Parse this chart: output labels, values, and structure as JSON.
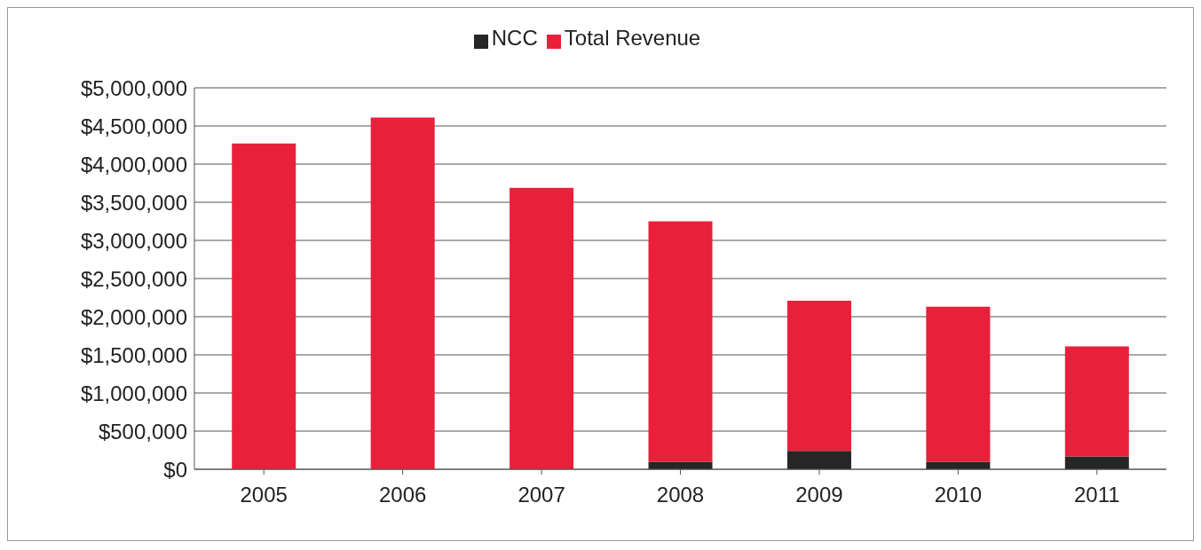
{
  "chart_data": {
    "type": "bar",
    "stacked": true,
    "categories": [
      "2005",
      "2006",
      "2007",
      "2008",
      "2009",
      "2010",
      "2011"
    ],
    "series": [
      {
        "name": "NCC",
        "color": "#262626",
        "values": [
          0,
          0,
          0,
          100000,
          240000,
          100000,
          170000
        ]
      },
      {
        "name": "Total Revenue",
        "color": "#e8203a",
        "values": [
          4270000,
          4610000,
          3690000,
          3150000,
          1970000,
          2030000,
          1440000
        ]
      }
    ],
    "ylim": [
      0,
      5000000
    ],
    "yticks": [
      {
        "value": 0,
        "label": "$0"
      },
      {
        "value": 500000,
        "label": "$500,000"
      },
      {
        "value": 1000000,
        "label": "$1,000,000"
      },
      {
        "value": 1500000,
        "label": "$1,500,000"
      },
      {
        "value": 2000000,
        "label": "$2,000,000"
      },
      {
        "value": 2500000,
        "label": "$2,500,000"
      },
      {
        "value": 3000000,
        "label": "$3,000,000"
      },
      {
        "value": 3500000,
        "label": "$3,500,000"
      },
      {
        "value": 4000000,
        "label": "$4,000,000"
      },
      {
        "value": 4500000,
        "label": "$4,500,000"
      },
      {
        "value": 5000000,
        "label": "$5,000,000"
      }
    ],
    "grid": "y",
    "legend": "top"
  }
}
